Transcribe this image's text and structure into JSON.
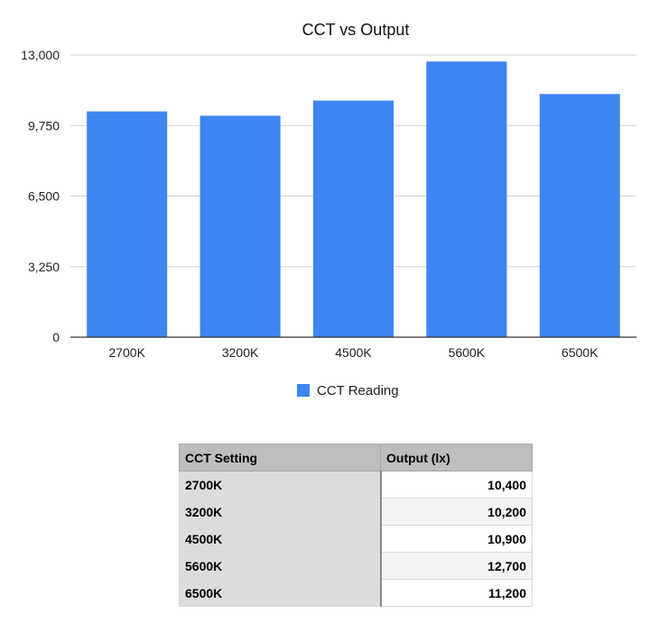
{
  "chart_data": {
    "type": "bar",
    "title": "CCT vs Output",
    "categories": [
      "2700K",
      "3200K",
      "4500K",
      "5600K",
      "6500K"
    ],
    "series": [
      {
        "name": "CCT Reading",
        "values": [
          10400,
          10200,
          10900,
          12700,
          11200
        ]
      }
    ],
    "ylim": [
      0,
      13000
    ],
    "yticks": [
      0,
      3250,
      6500,
      9750,
      13000
    ],
    "ytick_labels": [
      "0",
      "3,250",
      "6,500",
      "9,750",
      "13,000"
    ],
    "grid": true,
    "legend_position": "bottom",
    "bar_color": "#3d85f0"
  },
  "table": {
    "headers": [
      "CCT Setting",
      "Output (lx)"
    ],
    "rows": [
      [
        "2700K",
        "10,400"
      ],
      [
        "3200K",
        "10,200"
      ],
      [
        "4500K",
        "10,900"
      ],
      [
        "5600K",
        "12,700"
      ],
      [
        "6500K",
        "11,200"
      ]
    ]
  }
}
